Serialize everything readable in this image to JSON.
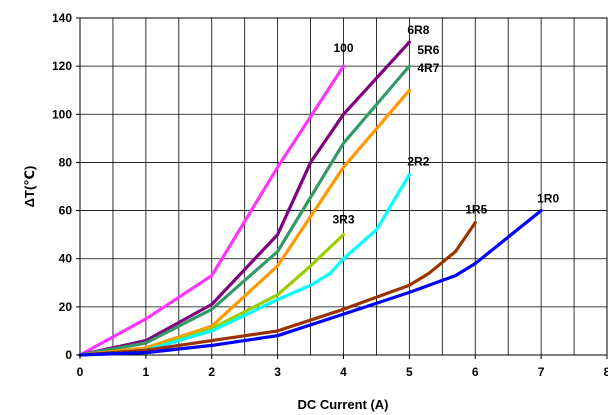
{
  "chart_data": {
    "type": "line",
    "xlabel": "DC Current (A)",
    "ylabel": "ΔT(℃)",
    "xlim": [
      0,
      8
    ],
    "ylim": [
      0,
      140
    ],
    "x_ticks": [
      "0",
      "1",
      "2",
      "3",
      "4",
      "5",
      "6",
      "7",
      "8"
    ],
    "y_ticks": [
      "0",
      "20",
      "40",
      "60",
      "80",
      "100",
      "120",
      "140"
    ],
    "grid": true,
    "series": [
      {
        "name": "100",
        "color": "#ff33ff",
        "x": [
          0,
          1,
          2,
          3,
          4
        ],
        "y": [
          0,
          15,
          33,
          78,
          120
        ]
      },
      {
        "name": "6R8",
        "color": "#800080",
        "x": [
          0,
          1,
          2,
          3,
          3.5,
          4,
          5
        ],
        "y": [
          0,
          6,
          21,
          50,
          80,
          100,
          130
        ]
      },
      {
        "name": "5R6",
        "color": "#339966",
        "x": [
          0,
          1,
          2,
          3,
          4,
          5
        ],
        "y": [
          0,
          5,
          19,
          43,
          88,
          120
        ]
      },
      {
        "name": "4R7",
        "color": "#ff9900",
        "x": [
          0,
          1,
          2,
          3,
          4,
          5
        ],
        "y": [
          0,
          3,
          12,
          37,
          78,
          110
        ]
      },
      {
        "name": "3R3",
        "color": "#99cc00",
        "x": [
          0,
          1,
          2,
          3,
          3.5,
          4
        ],
        "y": [
          0,
          2,
          11,
          25,
          37,
          50
        ]
      },
      {
        "name": "2R2",
        "color": "#00ffff",
        "x": [
          0,
          1,
          2,
          3,
          3.5,
          3.8,
          4,
          4.5,
          5
        ],
        "y": [
          0,
          2,
          10,
          23,
          29,
          34,
          40,
          52,
          75
        ]
      },
      {
        "name": "1R5",
        "color": "#993300",
        "x": [
          0,
          1,
          2,
          3,
          4,
          5,
          5.3,
          5.7,
          6
        ],
        "y": [
          0,
          2,
          6,
          10,
          19,
          29,
          34,
          43,
          55
        ]
      },
      {
        "name": "1R0",
        "color": "#0000ff",
        "x": [
          0,
          1,
          2,
          3,
          4,
          5,
          5.7,
          6,
          7
        ],
        "y": [
          0,
          1,
          4,
          8,
          17,
          26,
          33,
          38,
          60
        ]
      }
    ]
  }
}
